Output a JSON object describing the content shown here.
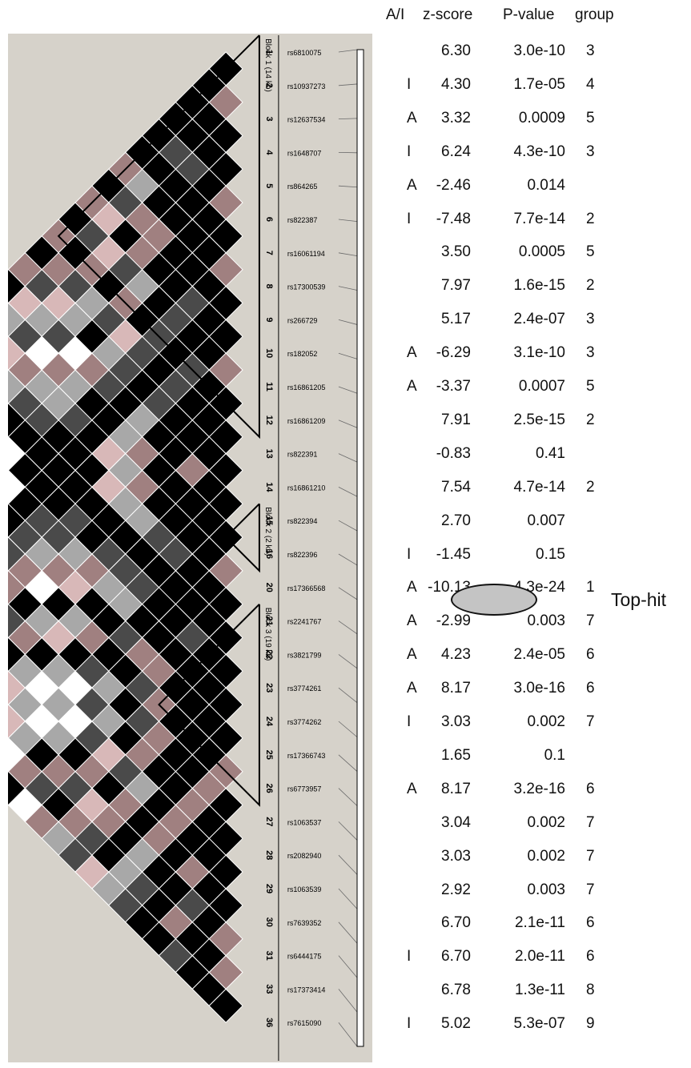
{
  "header": {
    "ai": "A/I",
    "z": "z-score",
    "p": "P-value",
    "group": "group"
  },
  "blocks": [
    "Block 1 (14 kb)",
    "Block 2 (2 kb)",
    "Block 3 (19 kb)"
  ],
  "rows": [
    {
      "idx": "1",
      "snp": "rs6810075",
      "ai": "",
      "z": "6.30",
      "p": "3.0e-10",
      "g": "3"
    },
    {
      "idx": "2",
      "snp": "rs10937273",
      "ai": "I",
      "z": "4.30",
      "p": "1.7e-05",
      "g": "4"
    },
    {
      "idx": "3",
      "snp": "rs12637534",
      "ai": "A",
      "z": "3.32",
      "p": "0.0009",
      "g": "5"
    },
    {
      "idx": "4",
      "snp": "rs1648707",
      "ai": "I",
      "z": "6.24",
      "p": "4.3e-10",
      "g": "3"
    },
    {
      "idx": "5",
      "snp": "rs864265",
      "ai": "A",
      "z": "-2.46",
      "p": "0.014",
      "g": ""
    },
    {
      "idx": "6",
      "snp": "rs822387",
      "ai": "I",
      "z": "-7.48",
      "p": "7.7e-14",
      "g": "2"
    },
    {
      "idx": "7",
      "snp": "rs16061194",
      "ai": "",
      "z": "3.50",
      "p": "0.0005",
      "g": "5"
    },
    {
      "idx": "8",
      "snp": "rs17300539",
      "ai": "",
      "z": "7.97",
      "p": "1.6e-15",
      "g": "2"
    },
    {
      "idx": "9",
      "snp": "rs266729",
      "ai": "",
      "z": "5.17",
      "p": "2.4e-07",
      "g": "3"
    },
    {
      "idx": "10",
      "snp": "rs182052",
      "ai": "A",
      "z": "-6.29",
      "p": "3.1e-10",
      "g": "3"
    },
    {
      "idx": "11",
      "snp": "rs16861205",
      "ai": "A",
      "z": "-3.37",
      "p": "0.0007",
      "g": "5"
    },
    {
      "idx": "12",
      "snp": "rs16861209",
      "ai": "",
      "z": "7.91",
      "p": "2.5e-15",
      "g": "2"
    },
    {
      "idx": "13",
      "snp": "rs822391",
      "ai": "",
      "z": "-0.83",
      "p": "0.41",
      "g": ""
    },
    {
      "idx": "14",
      "snp": "rs16861210",
      "ai": "",
      "z": "7.54",
      "p": "4.7e-14",
      "g": "2"
    },
    {
      "idx": "15",
      "snp": "rs822394",
      "ai": "",
      "z": "2.70",
      "p": "0.007",
      "g": ""
    },
    {
      "idx": "16",
      "snp": "rs822396",
      "ai": "I",
      "z": "-1.45",
      "p": "0.15",
      "g": ""
    },
    {
      "idx": "20",
      "snp": "rs17366568",
      "ai": "A",
      "z": "-10.13",
      "p": "4.3e-24",
      "g": "1"
    },
    {
      "idx": "21",
      "snp": "rs2241767",
      "ai": "A",
      "z": "-2.99",
      "p": "0.003",
      "g": "7"
    },
    {
      "idx": "22",
      "snp": "rs3821799",
      "ai": "A",
      "z": "4.23",
      "p": "2.4e-05",
      "g": "6"
    },
    {
      "idx": "23",
      "snp": "rs3774261",
      "ai": "A",
      "z": "8.17",
      "p": "3.0e-16",
      "g": "6"
    },
    {
      "idx": "24",
      "snp": "rs3774262",
      "ai": "I",
      "z": "3.03",
      "p": "0.002",
      "g": "7"
    },
    {
      "idx": "25",
      "snp": "rs17366743",
      "ai": "",
      "z": "1.65",
      "p": "0.1",
      "g": ""
    },
    {
      "idx": "26",
      "snp": "rs6773957",
      "ai": "A",
      "z": "8.17",
      "p": "3.2e-16",
      "g": "6"
    },
    {
      "idx": "27",
      "snp": "rs1063537",
      "ai": "",
      "z": "3.04",
      "p": "0.002",
      "g": "7"
    },
    {
      "idx": "28",
      "snp": "rs2082940",
      "ai": "",
      "z": "3.03",
      "p": "0.002",
      "g": "7"
    },
    {
      "idx": "29",
      "snp": "rs1063539",
      "ai": "",
      "z": "2.92",
      "p": "0.003",
      "g": "7"
    },
    {
      "idx": "30",
      "snp": "rs7639352",
      "ai": "",
      "z": "6.70",
      "p": "2.1e-11",
      "g": "6"
    },
    {
      "idx": "31",
      "snp": "rs6444175",
      "ai": "I",
      "z": "6.70",
      "p": "2.0e-11",
      "g": "6"
    },
    {
      "idx": "33",
      "snp": "rs17373414",
      "ai": "",
      "z": "6.78",
      "p": "1.3e-11",
      "g": "8"
    },
    {
      "idx": "36",
      "snp": "rs7615090",
      "ai": "I",
      "z": "5.02",
      "p": "5.3e-07",
      "g": "9"
    }
  ],
  "top_hit_label": "Top-hit",
  "colors": {
    "panel": "#d6d2ca",
    "strong_ld": "#000000",
    "medium": "#4a4a4a",
    "weak_pink": "#a08080",
    "light_pink": "#d8b8b8",
    "grey": "#a8a8a8",
    "white": "#ffffff"
  }
}
